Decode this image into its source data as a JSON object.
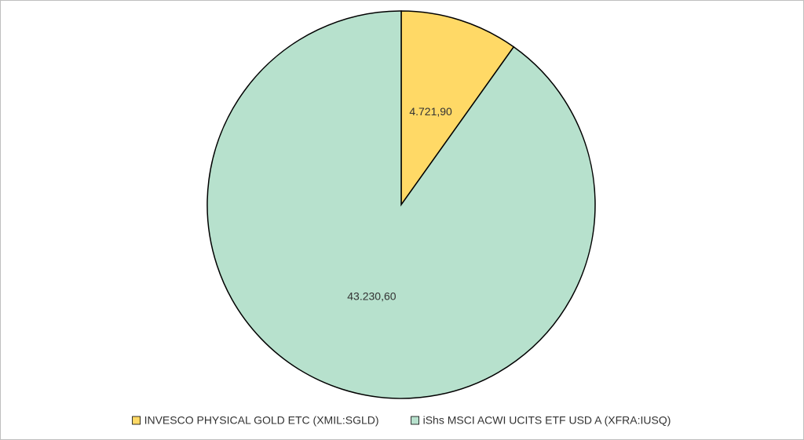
{
  "chart_data": {
    "type": "pie",
    "categories": [
      "INVESCO PHYSICAL GOLD ETC (XMIL:SGLD)",
      "iShs MSCI ACWI UCITS ETF USD A (XFRA:IUSQ)"
    ],
    "values": [
      4721.9,
      43230.6
    ],
    "value_labels": [
      "4.721,90",
      "43.230,60"
    ],
    "colors": [
      "#ffd966",
      "#b7e1cd"
    ],
    "legend": "bottom"
  }
}
